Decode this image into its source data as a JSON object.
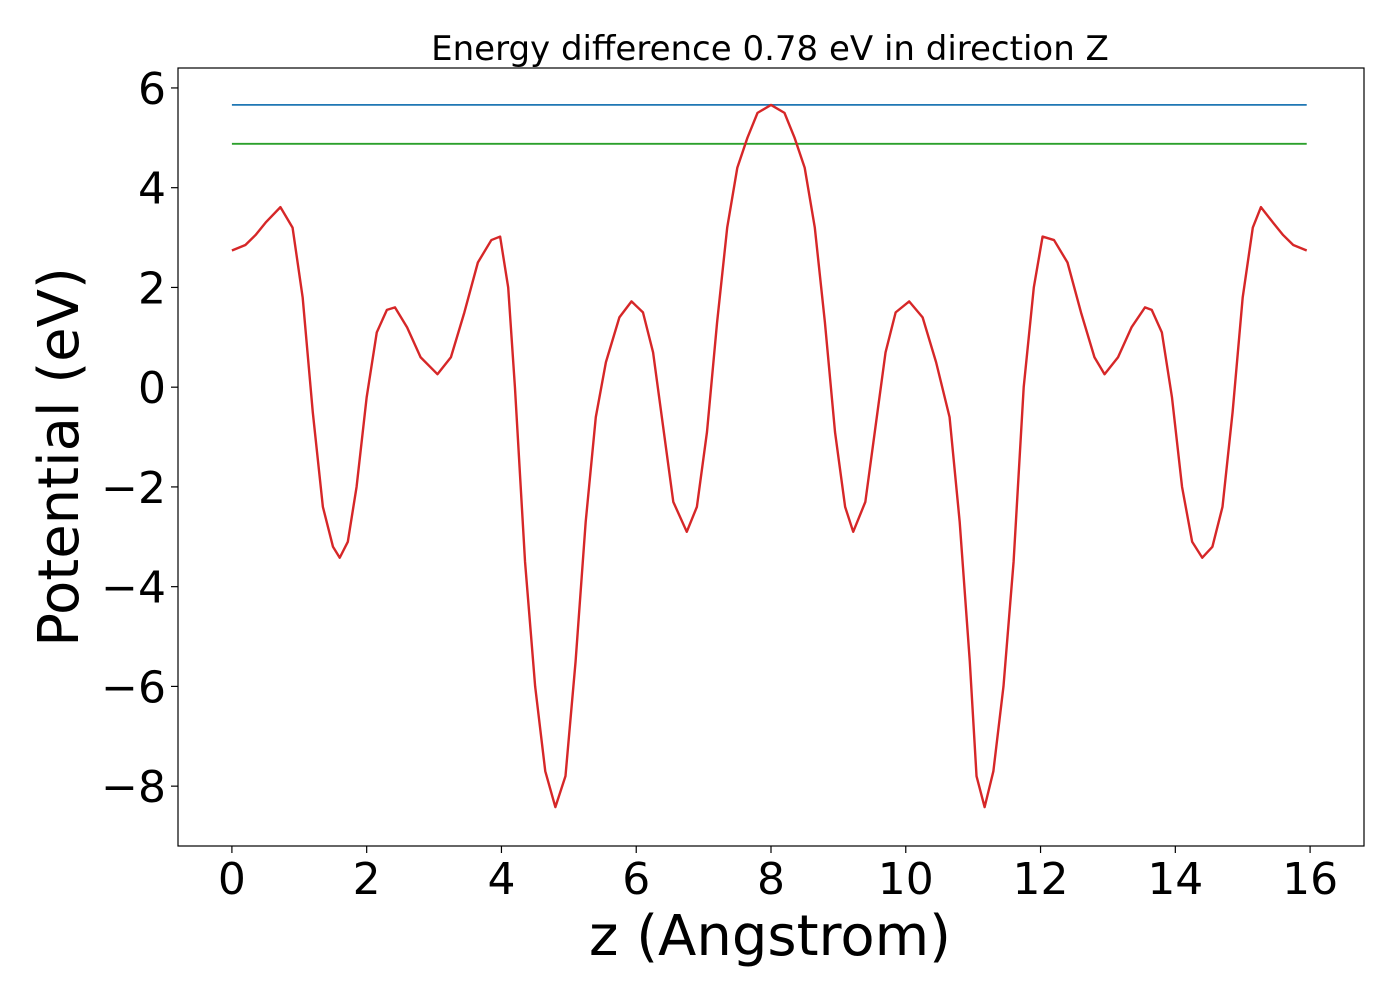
{
  "chart_data": {
    "type": "line",
    "title": "Energy difference 0.78 eV in direction Z",
    "xlabel": "z (Angstrom)",
    "ylabel": "Potential (eV)",
    "xlim": [
      -0.8,
      16.8
    ],
    "ylim": [
      -9.2,
      6.4
    ],
    "xticks": [
      0,
      2,
      4,
      6,
      8,
      10,
      12,
      14,
      16
    ],
    "yticks": [
      -8,
      -6,
      -4,
      -2,
      0,
      2,
      4,
      6
    ],
    "xtick_labels": [
      "0",
      "2",
      "4",
      "6",
      "8",
      "10",
      "12",
      "14",
      "16"
    ],
    "ytick_labels": [
      "−8",
      "−6",
      "−4",
      "−2",
      "0",
      "2",
      "4",
      "6"
    ],
    "grid": false,
    "series": [
      {
        "color": "#1f77b4",
        "x": [
          0,
          15.95
        ],
        "y": [
          5.66,
          5.66
        ]
      },
      {
        "color": "#2ca02c",
        "x": [
          0,
          15.95
        ],
        "y": [
          4.88,
          4.88
        ]
      },
      {
        "color": "#d62728",
        "x": [
          0,
          0.2,
          0.35,
          0.5,
          0.72,
          0.9,
          1.05,
          1.2,
          1.35,
          1.5,
          1.6,
          1.72,
          1.85,
          2.0,
          2.15,
          2.3,
          2.42,
          2.6,
          2.8,
          3.05,
          3.25,
          3.45,
          3.65,
          3.85,
          3.98,
          4.1,
          4.2,
          4.35,
          4.5,
          4.65,
          4.8,
          4.95,
          5.1,
          5.25,
          5.4,
          5.55,
          5.75,
          5.93,
          6.1,
          6.25,
          6.4,
          6.55,
          6.75,
          6.9,
          7.05,
          7.2,
          7.35,
          7.5,
          7.65,
          7.8,
          8.0,
          8.2,
          8.35,
          8.5,
          8.65,
          8.8,
          8.95,
          9.1,
          9.22,
          9.4,
          9.55,
          9.7,
          9.85,
          10.05,
          10.25,
          10.45,
          10.65,
          10.8,
          10.95,
          11.05,
          11.17,
          11.3,
          11.45,
          11.6,
          11.75,
          11.9,
          12.03,
          12.2,
          12.4,
          12.6,
          12.8,
          12.95,
          13.15,
          13.35,
          13.55,
          13.65,
          13.8,
          13.95,
          14.1,
          14.25,
          14.4,
          14.55,
          14.7,
          14.85,
          15.0,
          15.15,
          15.27,
          15.45,
          15.6,
          15.75,
          15.95
        ],
        "y": [
          2.74,
          2.85,
          3.05,
          3.3,
          3.61,
          3.2,
          1.8,
          -0.5,
          -2.4,
          -3.2,
          -3.42,
          -3.1,
          -2.0,
          -0.2,
          1.1,
          1.55,
          1.6,
          1.2,
          0.6,
          0.26,
          0.6,
          1.5,
          2.5,
          2.95,
          3.02,
          2.0,
          0.0,
          -3.5,
          -6.0,
          -7.7,
          -8.42,
          -7.8,
          -5.5,
          -2.7,
          -0.6,
          0.5,
          1.4,
          1.72,
          1.5,
          0.7,
          -0.8,
          -2.3,
          -2.9,
          -2.4,
          -0.9,
          1.3,
          3.2,
          4.4,
          5.0,
          5.5,
          5.66,
          5.5,
          5.0,
          4.4,
          3.2,
          1.3,
          -0.9,
          -2.4,
          -2.9,
          -2.3,
          -0.8,
          0.7,
          1.5,
          1.72,
          1.4,
          0.5,
          -0.6,
          -2.7,
          -5.5,
          -7.8,
          -8.42,
          -7.7,
          -6.0,
          -3.5,
          0.0,
          2.0,
          3.02,
          2.95,
          2.5,
          1.5,
          0.6,
          0.26,
          0.6,
          1.2,
          1.6,
          1.55,
          1.1,
          -0.2,
          -2.0,
          -3.1,
          -3.42,
          -3.2,
          -2.4,
          -0.5,
          1.8,
          3.2,
          3.61,
          3.3,
          3.05,
          2.85,
          2.74
        ]
      }
    ]
  }
}
